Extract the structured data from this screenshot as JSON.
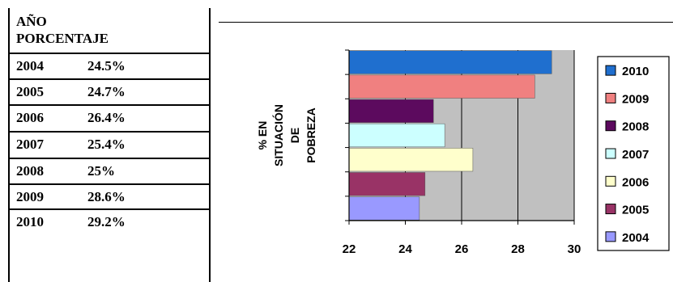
{
  "table": {
    "header_year": "AÑO",
    "header_percent": "PORCENTAJE",
    "rows": [
      {
        "year": "2004",
        "value": "24.5%"
      },
      {
        "year": "2005",
        "value": "24.7%"
      },
      {
        "year": "2006",
        "value": "26.4%"
      },
      {
        "year": "2007",
        "value": "25.4%"
      },
      {
        "year": "2008",
        "value": "25%"
      },
      {
        "year": "2009",
        "value": "28.6%"
      },
      {
        "year": "2010",
        "value": "29.2%"
      }
    ]
  },
  "chart_data": {
    "type": "bar",
    "orientation": "horizontal",
    "categories": [
      "2010",
      "2009",
      "2008",
      "2007",
      "2006",
      "2005",
      "2004"
    ],
    "values": [
      29.2,
      28.6,
      25.0,
      25.4,
      26.4,
      24.7,
      24.5
    ],
    "colors": [
      "#1f6fcf",
      "#f08080",
      "#5c0a5e",
      "#ccffff",
      "#ffffcc",
      "#993366",
      "#9999ff"
    ],
    "ylabel_lines": [
      "% EN",
      "SITUACIÓN",
      "DE",
      "POBREZA"
    ],
    "xlim": [
      22,
      30
    ],
    "xticks": [
      22,
      24,
      26,
      28,
      30
    ],
    "grid": true,
    "plot_background": "#c0c0c0",
    "legend": {
      "position": "right",
      "entries": [
        "2010",
        "2009",
        "2008",
        "2007",
        "2006",
        "2005",
        "2004"
      ]
    }
  }
}
